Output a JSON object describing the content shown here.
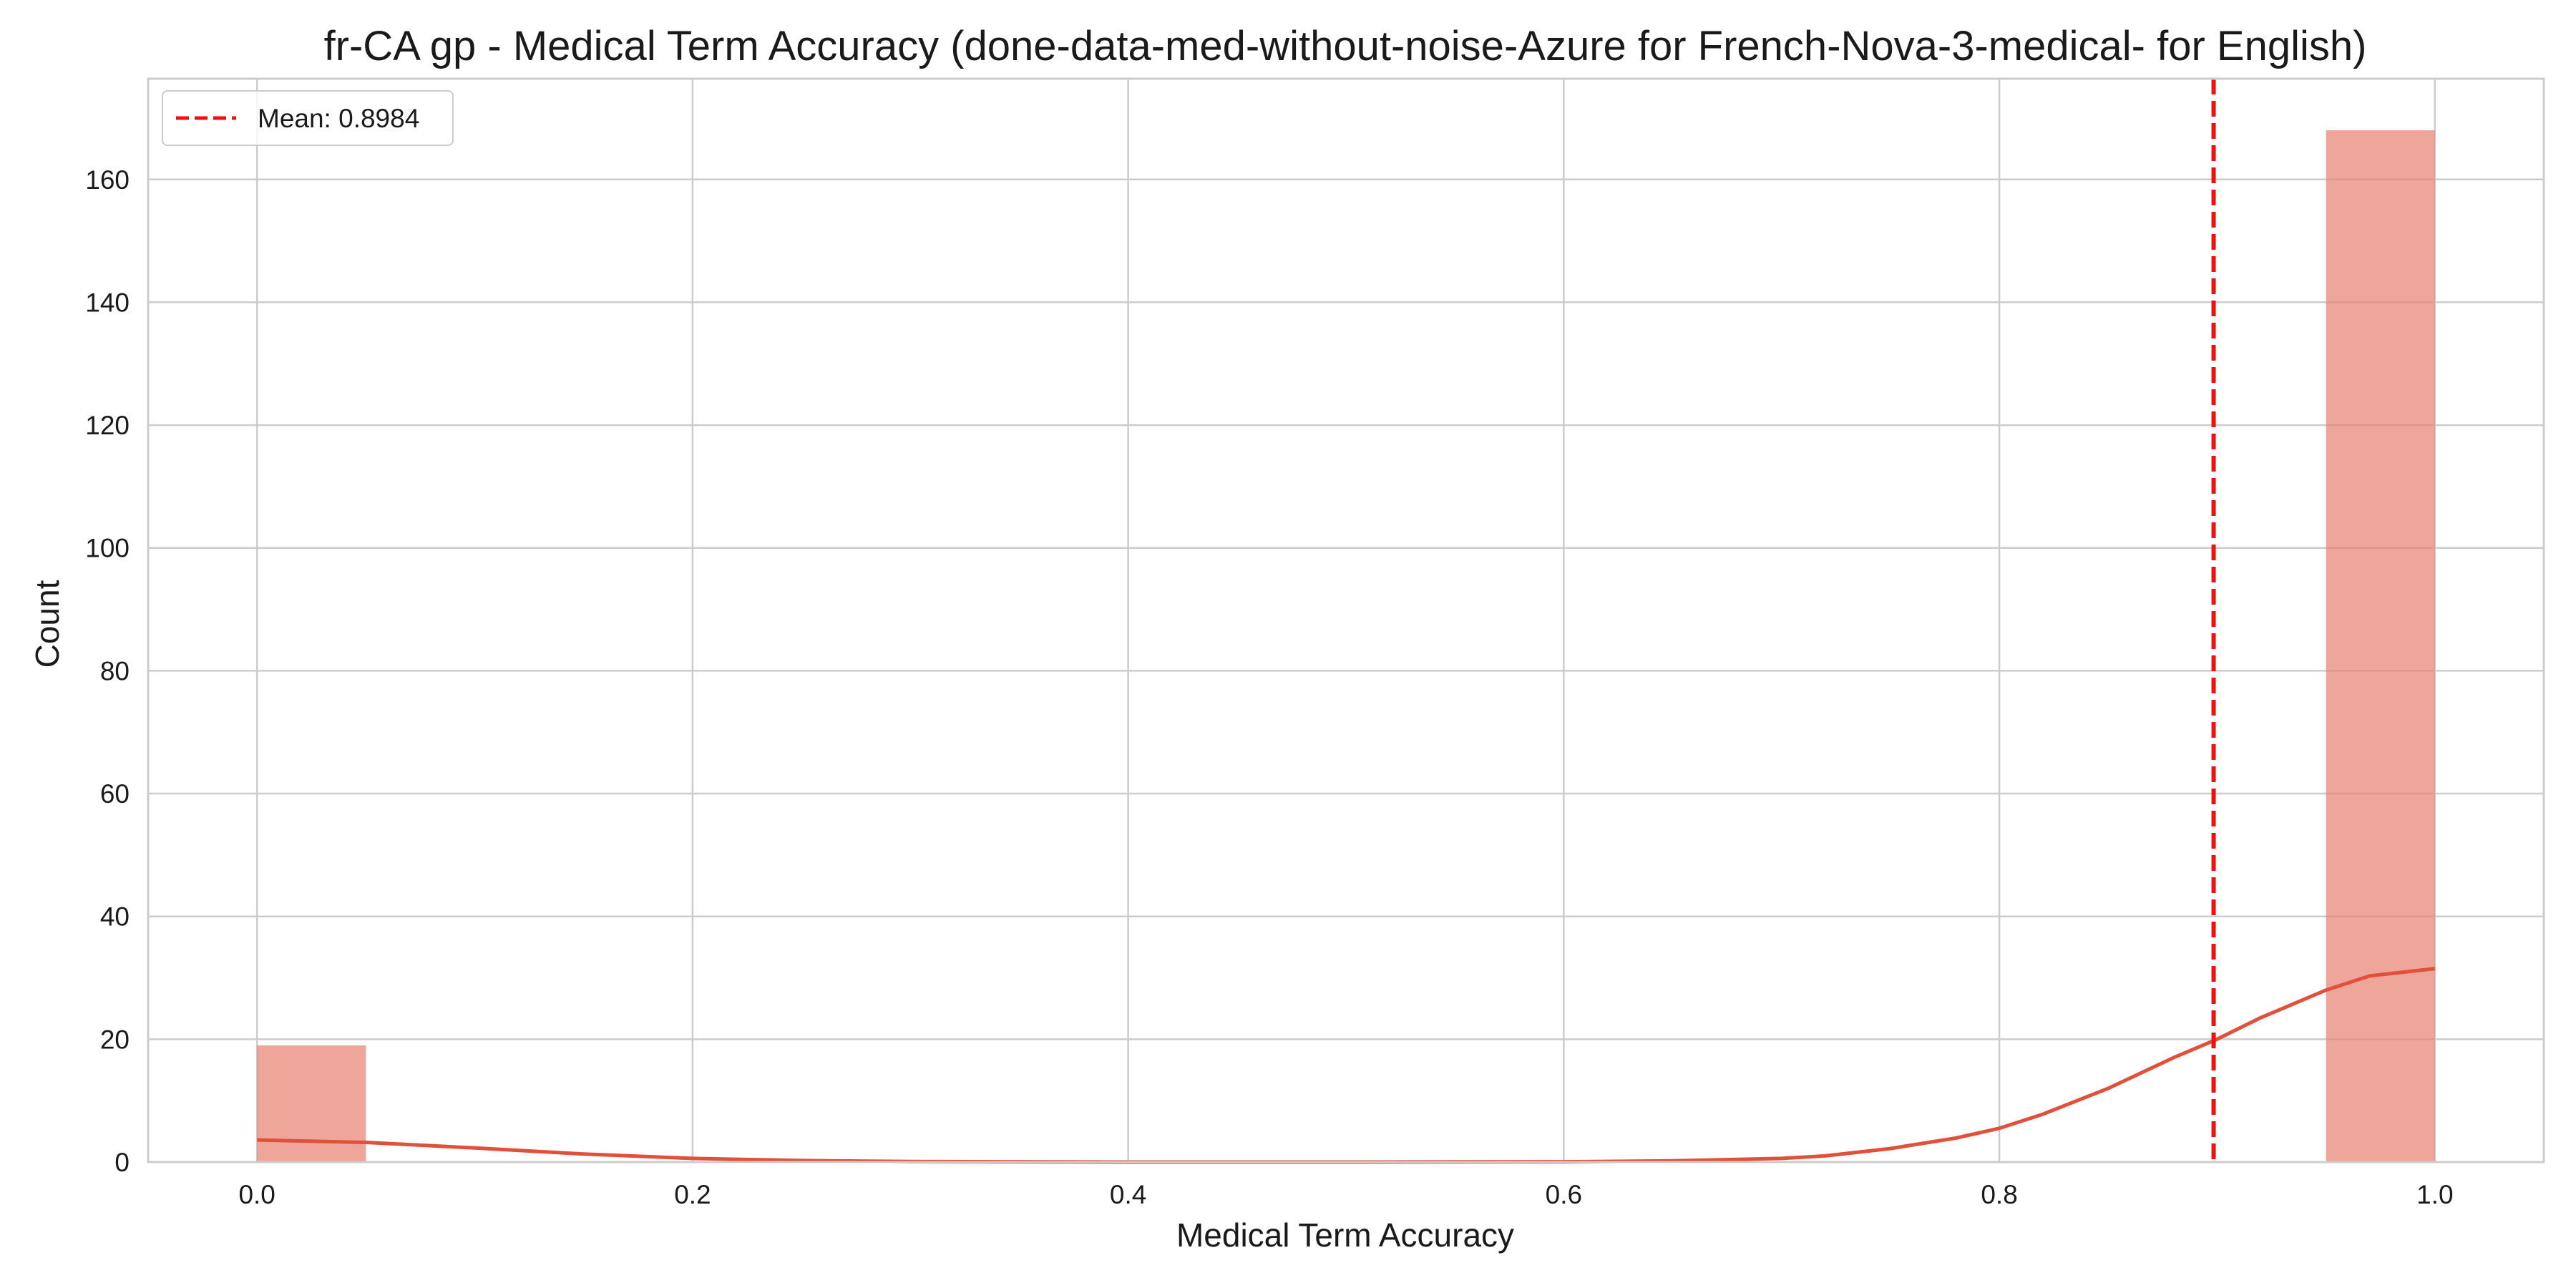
{
  "chart_data": {
    "type": "histogram",
    "title": "fr-CA gp - Medical Term Accuracy (done-data-med-without-noise-Azure for French-Nova-3-medical- for English)",
    "xlabel": "Medical Term Accuracy",
    "ylabel": "Count",
    "xlim": [
      -0.05,
      1.05
    ],
    "ylim": [
      0,
      176.4
    ],
    "xticks": [
      "0.0",
      "0.2",
      "0.4",
      "0.6",
      "0.8",
      "1.0"
    ],
    "xtick_values": [
      0,
      0.2,
      0.4,
      0.6,
      0.8,
      1.0
    ],
    "yticks": [
      "0",
      "20",
      "40",
      "60",
      "80",
      "100",
      "120",
      "140",
      "160"
    ],
    "ytick_values": [
      0,
      20,
      40,
      60,
      80,
      100,
      120,
      140,
      160
    ],
    "bins": [
      {
        "start": 0.0,
        "end": 0.05,
        "count": 19
      },
      {
        "start": 0.05,
        "end": 0.1,
        "count": 0
      },
      {
        "start": 0.1,
        "end": 0.15,
        "count": 0
      },
      {
        "start": 0.15,
        "end": 0.2,
        "count": 0
      },
      {
        "start": 0.2,
        "end": 0.25,
        "count": 0
      },
      {
        "start": 0.25,
        "end": 0.3,
        "count": 0
      },
      {
        "start": 0.3,
        "end": 0.35,
        "count": 0
      },
      {
        "start": 0.35,
        "end": 0.4,
        "count": 0
      },
      {
        "start": 0.4,
        "end": 0.45,
        "count": 0
      },
      {
        "start": 0.45,
        "end": 0.5,
        "count": 0
      },
      {
        "start": 0.5,
        "end": 0.55,
        "count": 0
      },
      {
        "start": 0.55,
        "end": 0.6,
        "count": 0
      },
      {
        "start": 0.6,
        "end": 0.65,
        "count": 0
      },
      {
        "start": 0.65,
        "end": 0.7,
        "count": 0
      },
      {
        "start": 0.7,
        "end": 0.75,
        "count": 0
      },
      {
        "start": 0.75,
        "end": 0.8,
        "count": 0
      },
      {
        "start": 0.8,
        "end": 0.85,
        "count": 0
      },
      {
        "start": 0.85,
        "end": 0.9,
        "count": 0
      },
      {
        "start": 0.9,
        "end": 0.95,
        "count": 0
      },
      {
        "start": 0.95,
        "end": 1.0,
        "count": 168
      }
    ],
    "kde": {
      "x": [
        0.0,
        0.05,
        0.1,
        0.15,
        0.2,
        0.25,
        0.3,
        0.4,
        0.5,
        0.6,
        0.65,
        0.7,
        0.72,
        0.75,
        0.78,
        0.8,
        0.82,
        0.85,
        0.88,
        0.9,
        0.92,
        0.95,
        0.97,
        1.0
      ],
      "y": [
        3.6,
        3.2,
        2.3,
        1.3,
        0.6,
        0.25,
        0.08,
        0.0,
        0.0,
        0.05,
        0.2,
        0.6,
        1.0,
        2.2,
        3.9,
        5.5,
        7.8,
        12.0,
        17.0,
        20.0,
        23.5,
        28.0,
        30.3,
        31.5
      ]
    },
    "mean": 0.8984,
    "legend": {
      "label": "Mean: 0.8984",
      "location": "upper left"
    },
    "grid": true,
    "colors": {
      "bar": "#e8806f",
      "bar_opacity": 0.7,
      "kde": "#e0503a",
      "mean_line": "#ee1111",
      "grid": "#cccccc",
      "axes_border": "#cccccc",
      "text": "#1a1a1a"
    }
  }
}
